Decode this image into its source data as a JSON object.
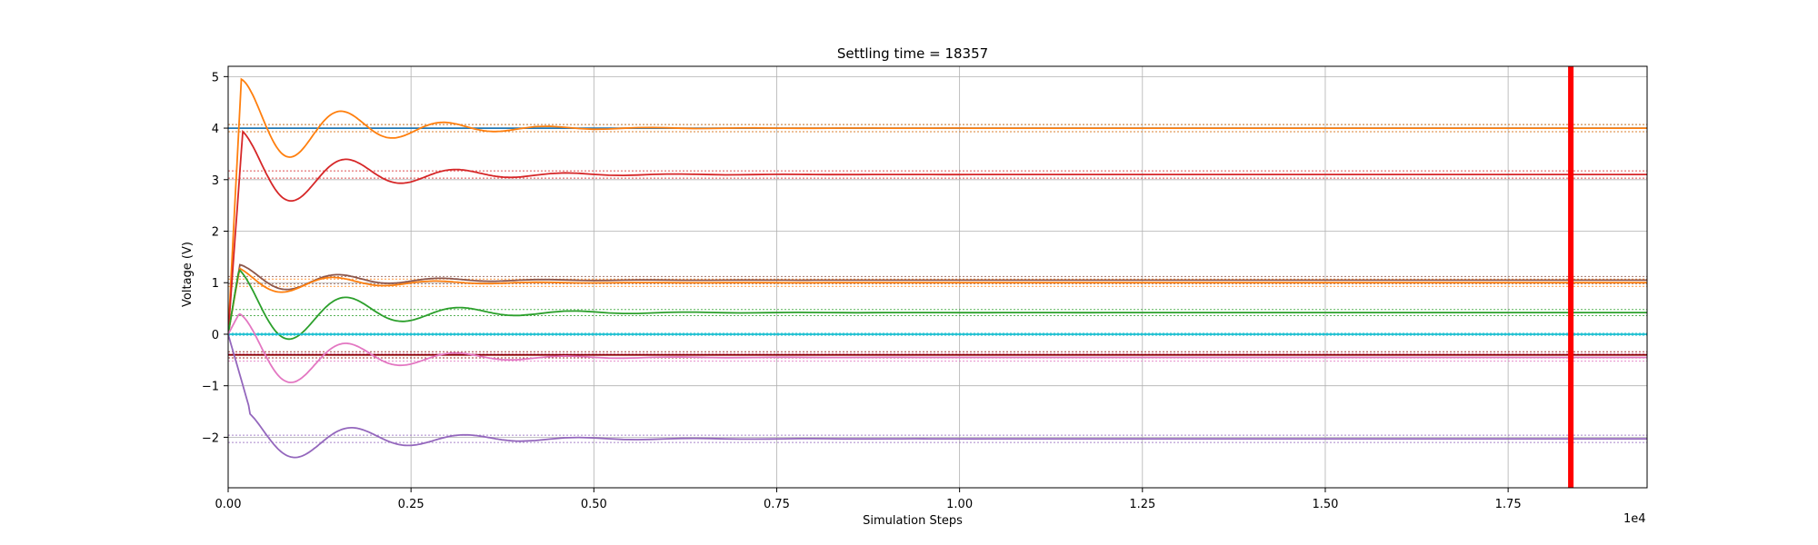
{
  "chart_data": {
    "type": "line",
    "title": "Settling time = 18357",
    "xlabel": "Simulation Steps",
    "ylabel": "Voltage (V)",
    "x_offset_label": "1e4",
    "xlim": [
      0,
      19400
    ],
    "ylim": [
      -2.98,
      5.2
    ],
    "xticks": [
      0,
      2500,
      5000,
      7500,
      10000,
      12500,
      15000,
      17500
    ],
    "xtick_labels": [
      "0.00",
      "0.25",
      "0.50",
      "0.75",
      "1.00",
      "1.25",
      "1.50",
      "1.75"
    ],
    "yticks": [
      -2,
      -1,
      0,
      1,
      2,
      3,
      4,
      5
    ],
    "ytick_labels": [
      "−2",
      "−1",
      "0",
      "1",
      "2",
      "3",
      "4",
      "5"
    ],
    "grid": true,
    "settling_marker": {
      "x": 18357,
      "color": "#ff0000"
    },
    "series": [
      {
        "color": "#1f77b4",
        "final": 4.0,
        "tolerance": [
          3.93,
          4.07
        ],
        "osc": {
          "amp": 0.0,
          "period": 1000,
          "decay": 1000,
          "phase": 0
        },
        "start": 4.0,
        "rise": 80
      },
      {
        "color": "#ff7f0e",
        "final": 4.0,
        "tolerance": [
          3.93,
          4.07
        ],
        "osc": {
          "amp": 0.95,
          "period": 1400,
          "decay": 1300,
          "phase": 0.0
        },
        "start": 0.0,
        "rise": 180
      },
      {
        "color": "#d62728",
        "final": 3.1,
        "tolerance": [
          3.03,
          3.17
        ],
        "osc": {
          "amp": 0.85,
          "period": 1500,
          "decay": 1350,
          "phase": 0.2
        },
        "start": 0.0,
        "rise": 200
      },
      {
        "color": "#8c564b",
        "final": 1.05,
        "tolerance": [
          0.98,
          1.12
        ],
        "osc": {
          "amp": 0.3,
          "period": 1400,
          "decay": 1300,
          "phase": 0.1
        },
        "start": 0.0,
        "rise": 160
      },
      {
        "color": "#ff7f0e",
        "final": 1.0,
        "tolerance": [
          0.93,
          1.07
        ],
        "osc": {
          "amp": 0.3,
          "period": 1400,
          "decay": 1200,
          "phase": 0.4
        },
        "start": 0.0,
        "rise": 160
      },
      {
        "color": "#2ca02c",
        "final": 0.42,
        "tolerance": [
          0.36,
          0.48
        ],
        "osc": {
          "amp": 0.85,
          "period": 1550,
          "decay": 1400,
          "phase": 0.2
        },
        "start": 0.0,
        "rise": 150
      },
      {
        "color": "#17becf",
        "final": 0.0,
        "tolerance": [
          -0.02,
          0.02
        ],
        "osc": {
          "amp": 0.0,
          "period": 1000,
          "decay": 1000,
          "phase": 0
        },
        "start": 0.0,
        "rise": 50
      },
      {
        "color": "#8b0000",
        "final": -0.4,
        "tolerance": [
          -0.46,
          -0.34
        ],
        "osc": {
          "amp": 0.0,
          "period": 1000,
          "decay": 1000,
          "phase": 0
        },
        "start": -0.4,
        "rise": 50
      },
      {
        "color": "#e377c2",
        "final": -0.45,
        "tolerance": [
          -0.52,
          -0.38
        ],
        "osc": {
          "amp": 0.85,
          "period": 1500,
          "decay": 1300,
          "phase": 0.0
        },
        "start": 0.0,
        "rise": 150
      },
      {
        "color": "#9467bd",
        "final": -2.03,
        "tolerance": [
          -2.1,
          -1.96
        ],
        "osc": {
          "amp": 0.55,
          "period": 1550,
          "decay": 1500,
          "phase": 0.5
        },
        "start": 0.0,
        "rise": 300
      }
    ]
  }
}
